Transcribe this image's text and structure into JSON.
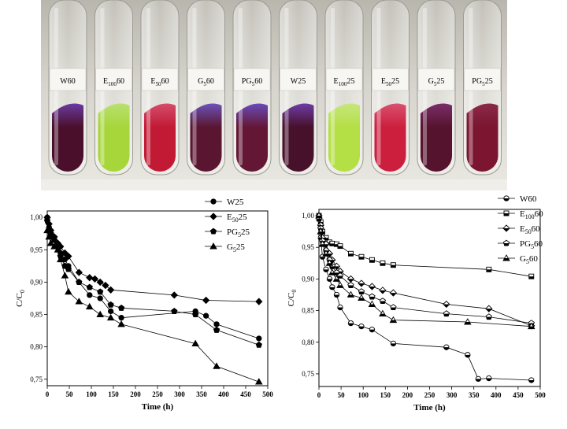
{
  "photo": {
    "labels": [
      "W60",
      "E100 60",
      "E50 60",
      "G5 60",
      "PG5 60",
      "W25",
      "E100 25",
      "E50 25",
      "G5 25",
      "PG5 25"
    ],
    "liquid_colors": [
      "#4a0f2a",
      "#a6d63a",
      "#c21a35",
      "#5a1530",
      "#641735",
      "#47102b",
      "#b4df45",
      "#cc1f3d",
      "#56132d",
      "#7b1530"
    ],
    "top_colors": [
      "#6b3aa0",
      "#b9e070",
      "#d44d6a",
      "#6a52b8",
      "#6a4ab8",
      "#6d3ca5",
      "#c6e67c",
      "#d9506e",
      "#7a2e6a",
      "#8a2a48"
    ]
  },
  "chart_data": [
    {
      "type": "line",
      "xlabel": "Time (h)",
      "ylabel": "C/C0",
      "xlim": [
        0,
        500
      ],
      "ylim": [
        0.74,
        1.01
      ],
      "xticks": [
        0,
        50,
        100,
        150,
        200,
        250,
        300,
        350,
        400,
        450,
        500
      ],
      "yticks": [
        0.75,
        0.8,
        0.85,
        0.9,
        0.95,
        1.0
      ],
      "xtick_labels": [
        "0",
        "50",
        "100",
        "150",
        "200",
        "250",
        "300",
        "350",
        "400",
        "450",
        "500"
      ],
      "ytick_labels": [
        "0,75",
        "0,80",
        "0,85",
        "0,90",
        "0,95",
        "1,00"
      ],
      "legend_position": "top-right",
      "series": [
        {
          "name": "W25",
          "marker": "circle",
          "x": [
            0,
            4,
            8,
            16,
            24,
            30,
            40,
            48,
            72,
            96,
            120,
            144,
            168,
            336,
            360,
            384,
            480
          ],
          "y": [
            1.0,
            0.985,
            0.975,
            0.965,
            0.955,
            0.945,
            0.935,
            0.925,
            0.9,
            0.88,
            0.875,
            0.855,
            0.845,
            0.855,
            0.848,
            0.835,
            0.813
          ]
        },
        {
          "name": "E50 25",
          "marker": "diamond",
          "x": [
            0,
            4,
            8,
            16,
            24,
            30,
            40,
            48,
            72,
            96,
            108,
            120,
            132,
            144,
            288,
            360,
            480
          ],
          "y": [
            1.0,
            0.99,
            0.98,
            0.97,
            0.96,
            0.955,
            0.945,
            0.94,
            0.915,
            0.907,
            0.905,
            0.9,
            0.895,
            0.888,
            0.88,
            0.872,
            0.87
          ]
        },
        {
          "name": "PG5 25",
          "marker": "pentagon",
          "x": [
            0,
            4,
            8,
            16,
            24,
            30,
            40,
            48,
            72,
            96,
            120,
            144,
            168,
            288,
            336,
            384,
            480
          ],
          "y": [
            0.995,
            0.98,
            0.975,
            0.965,
            0.955,
            0.94,
            0.925,
            0.92,
            0.9,
            0.892,
            0.885,
            0.865,
            0.86,
            0.855,
            0.85,
            0.826,
            0.803
          ]
        },
        {
          "name": "G5 25",
          "marker": "triangle",
          "x": [
            0,
            4,
            8,
            16,
            24,
            30,
            40,
            48,
            72,
            96,
            120,
            144,
            168,
            336,
            384,
            480
          ],
          "y": [
            0.98,
            0.97,
            0.96,
            0.955,
            0.95,
            0.935,
            0.91,
            0.885,
            0.87,
            0.862,
            0.85,
            0.845,
            0.835,
            0.805,
            0.77,
            0.746
          ]
        }
      ]
    },
    {
      "type": "line",
      "xlabel": "Time (h)",
      "ylabel": "C/C0",
      "xlim": [
        0,
        500
      ],
      "ylim": [
        0.73,
        1.01
      ],
      "xticks": [
        0,
        50,
        100,
        150,
        200,
        250,
        300,
        350,
        400,
        450,
        500
      ],
      "yticks": [
        0.75,
        0.8,
        0.85,
        0.9,
        0.95,
        1.0
      ],
      "xtick_labels": [
        "0",
        "50",
        "100",
        "150",
        "200",
        "250",
        "300",
        "350",
        "400",
        "450",
        "500"
      ],
      "ytick_labels": [
        "0,75",
        "0,80",
        "0,85",
        "0,90",
        "0,95",
        "1,00"
      ],
      "legend_position": "top-right",
      "series": [
        {
          "name": "W60",
          "marker": "circle-half",
          "x": [
            0,
            4,
            8,
            16,
            24,
            30,
            40,
            48,
            72,
            96,
            120,
            168,
            288,
            336,
            360,
            384,
            480
          ],
          "y": [
            0.998,
            0.965,
            0.935,
            0.915,
            0.9,
            0.887,
            0.875,
            0.855,
            0.83,
            0.825,
            0.82,
            0.798,
            0.792,
            0.78,
            0.742,
            0.743,
            0.74
          ]
        },
        {
          "name": "E100 60",
          "marker": "square-half",
          "x": [
            0,
            4,
            8,
            16,
            24,
            30,
            40,
            48,
            72,
            96,
            120,
            144,
            168,
            384,
            480
          ],
          "y": [
            1.0,
            0.99,
            0.975,
            0.965,
            0.958,
            0.956,
            0.955,
            0.952,
            0.94,
            0.935,
            0.93,
            0.925,
            0.922,
            0.915,
            0.904
          ]
        },
        {
          "name": "E50 60",
          "marker": "diamond-half",
          "x": [
            0,
            4,
            8,
            16,
            24,
            30,
            40,
            48,
            72,
            96,
            120,
            144,
            168,
            288,
            384,
            480
          ],
          "y": [
            1.0,
            0.985,
            0.965,
            0.955,
            0.94,
            0.93,
            0.92,
            0.912,
            0.9,
            0.893,
            0.888,
            0.882,
            0.878,
            0.86,
            0.853,
            0.826
          ]
        },
        {
          "name": "PG5 60",
          "marker": "pentagon-half",
          "x": [
            0,
            4,
            8,
            16,
            24,
            30,
            40,
            48,
            72,
            96,
            120,
            144,
            168,
            288,
            384,
            480
          ],
          "y": [
            0.995,
            0.98,
            0.96,
            0.945,
            0.93,
            0.92,
            0.91,
            0.905,
            0.89,
            0.88,
            0.872,
            0.865,
            0.855,
            0.845,
            0.84,
            0.83
          ]
        },
        {
          "name": "G5 60",
          "marker": "triangle-half",
          "x": [
            0,
            4,
            8,
            16,
            24,
            30,
            40,
            48,
            72,
            96,
            120,
            144,
            168,
            336,
            480
          ],
          "y": [
            1.0,
            0.975,
            0.955,
            0.94,
            0.925,
            0.91,
            0.9,
            0.89,
            0.875,
            0.87,
            0.86,
            0.845,
            0.835,
            0.832,
            0.825
          ]
        }
      ]
    }
  ]
}
